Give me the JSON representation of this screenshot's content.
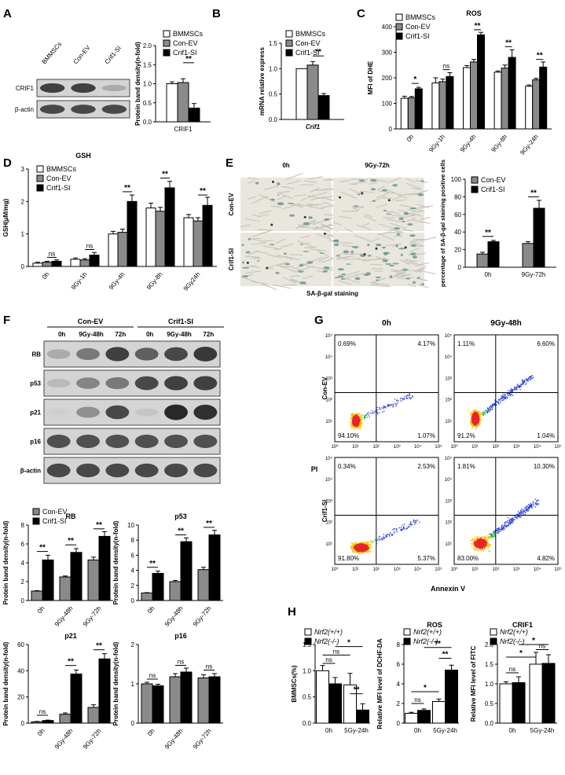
{
  "panels": {
    "A": {
      "letter": "A",
      "lanes": [
        "BMMSCs",
        "Con-EV",
        "Crif1-SI"
      ],
      "rows": [
        {
          "label": "CRIF1",
          "intensity": [
            0.85,
            0.85,
            0.35
          ]
        },
        {
          "label": "β-actin",
          "intensity": [
            0.8,
            0.8,
            0.8
          ]
        }
      ]
    },
    "B": {
      "letter": "B"
    },
    "C": {
      "letter": "C"
    },
    "D": {
      "letter": "D"
    },
    "E": {
      "letter": "E",
      "col_labels": [
        "0h",
        "9Gy-72h"
      ],
      "row_labels": [
        "Con-EV",
        "Crif1-SI"
      ],
      "caption": "SA-β-gal staining",
      "stain_density": [
        [
          0.12,
          0.22
        ],
        [
          0.25,
          0.55
        ]
      ]
    },
    "F": {
      "letter": "F",
      "groups": [
        "Con-EV",
        "Crif1-SI"
      ],
      "time_labels": [
        "0h",
        "9Gy-48h",
        "72h",
        "0h",
        "9Gy-48h",
        "72h"
      ],
      "rows": [
        {
          "label": "RB",
          "intensity": [
            0.35,
            0.6,
            0.85,
            0.7,
            0.8,
            0.9
          ]
        },
        {
          "label": "p53",
          "intensity": [
            0.25,
            0.55,
            0.6,
            0.8,
            0.85,
            0.85
          ]
        },
        {
          "label": "p21",
          "intensity": [
            0.05,
            0.5,
            0.8,
            0.15,
            1.0,
            0.95
          ]
        },
        {
          "label": "p16",
          "intensity": [
            0.75,
            0.75,
            0.75,
            0.75,
            0.75,
            0.75
          ]
        },
        {
          "label": "β-actin",
          "intensity": [
            0.8,
            0.8,
            0.8,
            0.8,
            0.8,
            0.8
          ]
        }
      ]
    },
    "G": {
      "letter": "G",
      "col_labels": [
        "0h",
        "9Gy-48h"
      ],
      "row_labels": [
        "Con-EV",
        "Crif1-SI"
      ],
      "xlabel": "Annexin V",
      "ylabel": "PI",
      "tick_labels": [
        "10⁰",
        "10¹",
        "10²",
        "10³",
        "10⁴",
        "10⁵"
      ],
      "plots": [
        {
          "ul": "0.69%",
          "ur": "4.17%",
          "ll": "94.10%",
          "lr": "1.07%"
        },
        {
          "ul": "1.11%",
          "ur": "6.60%",
          "ll": "91.2%",
          "lr": "1.04%"
        },
        {
          "ul": "0.34%",
          "ur": "2.53%",
          "ll": "91.80%",
          "lr": "5.37%"
        },
        {
          "ul": "1.81%",
          "ur": "10.30%",
          "ll": "83.00%",
          "lr": "4.82%"
        }
      ]
    },
    "H": {
      "letter": "H"
    }
  },
  "chart_data": [
    {
      "id": "A_bar",
      "type": "bar",
      "categories": [
        "CRIF1"
      ],
      "series": [
        {
          "name": "BMMSCs",
          "values": [
            1.0
          ],
          "err": [
            0.05
          ]
        },
        {
          "name": "Con-EV",
          "values": [
            1.03
          ],
          "err": [
            0.1
          ]
        },
        {
          "name": "Crif1-SI",
          "values": [
            0.36
          ],
          "err": [
            0.12
          ]
        }
      ],
      "ylabel": "Protein band density(n-fold)",
      "ylim": [
        0,
        2
      ],
      "yticks": [
        0,
        0.5,
        1.0,
        1.5,
        2.0
      ],
      "sig": [
        {
          "from": 1,
          "to": 2,
          "y": 1.55,
          "label": "**"
        }
      ]
    },
    {
      "id": "B_bar",
      "type": "bar",
      "categories": [
        "Crif1"
      ],
      "series": [
        {
          "name": "BMMSCs",
          "values": [
            1.0
          ],
          "err": [
            0.0
          ]
        },
        {
          "name": "Con-EV",
          "values": [
            1.07
          ],
          "err": [
            0.07
          ]
        },
        {
          "name": "Crif1-SI",
          "values": [
            0.47
          ],
          "err": [
            0.04
          ]
        }
      ],
      "ylabel": "mRNA relative express",
      "ylim": [
        0,
        1.5
      ],
      "yticks": [
        0.0,
        0.5,
        1.0,
        1.5
      ],
      "sig": [
        {
          "from": 1,
          "to": 2,
          "y": 1.25,
          "label": "**"
        }
      ]
    },
    {
      "id": "C_bar",
      "type": "bar",
      "title": "ROS",
      "categories": [
        "0h",
        "9Gy-1h",
        "9Gy-4h",
        "9Gy-8h",
        "9Gy-24h"
      ],
      "series": [
        {
          "name": "BMMSCs",
          "values": [
            120,
            180,
            240,
            222,
            167
          ],
          "err": [
            8,
            20,
            8,
            5,
            5
          ]
        },
        {
          "name": "Con-EV",
          "values": [
            122,
            185,
            262,
            238,
            192
          ],
          "err": [
            5,
            10,
            10,
            12,
            6
          ]
        },
        {
          "name": "Crif1-SI",
          "values": [
            157,
            205,
            368,
            280,
            242
          ],
          "err": [
            6,
            15,
            10,
            30,
            20
          ]
        }
      ],
      "ylabel": "MFI of DHE",
      "ylim": [
        0,
        400
      ],
      "yticks": [
        0,
        100,
        200,
        300,
        400
      ],
      "sig": [
        {
          "cat": 0,
          "from": 1,
          "to": 2,
          "y": 178,
          "label": "*"
        },
        {
          "cat": 1,
          "from": 1,
          "to": 2,
          "y": 232,
          "label": "ns"
        },
        {
          "cat": 2,
          "from": 1,
          "to": 2,
          "y": 388,
          "label": "**"
        },
        {
          "cat": 3,
          "from": 1,
          "to": 2,
          "y": 322,
          "label": "**"
        },
        {
          "cat": 4,
          "from": 1,
          "to": 2,
          "y": 272,
          "label": "**"
        }
      ]
    },
    {
      "id": "D_bar",
      "type": "bar",
      "title": "GSH",
      "categories": [
        "0h",
        "9Gy-1h",
        "9Gy-4h",
        "9Gy-8h",
        "9Gy24h"
      ],
      "series": [
        {
          "name": "BMMSCs",
          "values": [
            0.1,
            0.22,
            1.0,
            1.8,
            1.5
          ],
          "err": [
            0.03,
            0.04,
            0.08,
            0.15,
            0.1
          ]
        },
        {
          "name": "Con-EV",
          "values": [
            0.13,
            0.2,
            1.05,
            1.7,
            1.4
          ],
          "err": [
            0.03,
            0.04,
            0.1,
            0.12,
            0.1
          ]
        },
        {
          "name": "Crif1-SI",
          "values": [
            0.16,
            0.35,
            2.0,
            2.42,
            1.88
          ],
          "err": [
            0.04,
            0.08,
            0.2,
            0.2,
            0.25
          ]
        }
      ],
      "ylabel": "GSH(μM/mg)",
      "ylim": [
        0,
        3
      ],
      "yticks": [
        0,
        1,
        2,
        3
      ],
      "sig": [
        {
          "cat": 0,
          "from": 1,
          "to": 2,
          "y": 0.28,
          "label": "ns"
        },
        {
          "cat": 1,
          "from": 1,
          "to": 2,
          "y": 0.52,
          "label": "ns"
        },
        {
          "cat": 2,
          "from": 1,
          "to": 2,
          "y": 2.3,
          "label": "**"
        },
        {
          "cat": 3,
          "from": 1,
          "to": 2,
          "y": 2.72,
          "label": "**"
        },
        {
          "cat": 4,
          "from": 1,
          "to": 2,
          "y": 2.2,
          "label": "**"
        }
      ]
    },
    {
      "id": "E_bar",
      "type": "bar",
      "categories": [
        "0h",
        "9Gy-72h"
      ],
      "series": [
        {
          "name": "Con-EV",
          "values": [
            15,
            27
          ],
          "err": [
            2,
            2
          ]
        },
        {
          "name": "Crif1-SI",
          "values": [
            29,
            67
          ],
          "err": [
            1.5,
            9
          ]
        }
      ],
      "ylabel": "percentage of SA-β-gal staining positive cells",
      "ylim": [
        0,
        100
      ],
      "yticks": [
        0,
        20,
        40,
        60,
        80,
        100
      ],
      "sig": [
        {
          "cat": 0,
          "from": 0,
          "to": 1,
          "y": 35,
          "label": "**"
        },
        {
          "cat": 1,
          "from": 0,
          "to": 1,
          "y": 80,
          "label": "**"
        }
      ]
    },
    {
      "id": "F_RB",
      "type": "bar",
      "title": "RB",
      "categories": [
        "0h",
        "9Gy-48h",
        "9Gy-72h"
      ],
      "series": [
        {
          "name": "Con-EV",
          "values": [
            1.0,
            2.5,
            4.3
          ],
          "err": [
            0.05,
            0.1,
            0.3
          ]
        },
        {
          "name": "Crif1-SI",
          "values": [
            4.3,
            5.1,
            6.8
          ],
          "err": [
            0.5,
            0.4,
            0.5
          ]
        }
      ],
      "ylabel": "Protein band density(n-fold)",
      "ylim": [
        0,
        8
      ],
      "yticks": [
        0,
        2,
        4,
        6,
        8
      ],
      "sig": [
        {
          "cat": 0,
          "from": 0,
          "to": 1,
          "y": 5.2,
          "label": "**"
        },
        {
          "cat": 1,
          "from": 0,
          "to": 1,
          "y": 5.9,
          "label": "**"
        },
        {
          "cat": 2,
          "from": 0,
          "to": 1,
          "y": 7.6,
          "label": "**"
        }
      ]
    },
    {
      "id": "F_p53",
      "type": "bar",
      "title": "p53",
      "categories": [
        "0h",
        "9Gy-48h",
        "9Gy-72h"
      ],
      "series": [
        {
          "name": "Con-EV",
          "values": [
            1.0,
            2.5,
            4.1
          ],
          "err": [
            0.05,
            0.15,
            0.3
          ]
        },
        {
          "name": "Crif1-SI",
          "values": [
            3.6,
            7.8,
            8.7
          ],
          "err": [
            0.3,
            0.5,
            0.6
          ]
        }
      ],
      "ylabel": "Protein band density(n-fold)",
      "ylim": [
        0,
        10
      ],
      "yticks": [
        0,
        2,
        4,
        6,
        8,
        10
      ],
      "sig": [
        {
          "cat": 0,
          "from": 0,
          "to": 1,
          "y": 4.4,
          "label": "**"
        },
        {
          "cat": 1,
          "from": 0,
          "to": 1,
          "y": 8.7,
          "label": "**"
        },
        {
          "cat": 2,
          "from": 0,
          "to": 1,
          "y": 9.7,
          "label": "**"
        }
      ]
    },
    {
      "id": "F_p21",
      "type": "bar",
      "title": "p21",
      "categories": [
        "0h",
        "9Gy-48h",
        "9Gy-72h"
      ],
      "series": [
        {
          "name": "Con-EV",
          "values": [
            1.0,
            6.8,
            12.0
          ],
          "err": [
            0.3,
            1.0,
            2.0
          ]
        },
        {
          "name": "Crif1-SI",
          "values": [
            2.0,
            37.5,
            49.0
          ],
          "err": [
            0.3,
            3.0,
            4.0
          ]
        }
      ],
      "ylabel": "Protein band density(n-fold)",
      "ylim": [
        0,
        60
      ],
      "yticks": [
        0,
        20,
        40,
        60
      ],
      "sig": [
        {
          "cat": 0,
          "from": 0,
          "to": 1,
          "y": 6,
          "label": "ns"
        },
        {
          "cat": 1,
          "from": 0,
          "to": 1,
          "y": 44,
          "label": "**"
        },
        {
          "cat": 2,
          "from": 0,
          "to": 1,
          "y": 56,
          "label": "**"
        }
      ]
    },
    {
      "id": "F_p16",
      "type": "bar",
      "title": "p16",
      "categories": [
        "0h",
        "9Gy-48h",
        "9Gy-72h"
      ],
      "series": [
        {
          "name": "Con-EV",
          "values": [
            1.0,
            1.18,
            1.15
          ],
          "err": [
            0.04,
            0.08,
            0.08
          ]
        },
        {
          "name": "Crif1-SI",
          "values": [
            0.95,
            1.3,
            1.18
          ],
          "err": [
            0.04,
            0.1,
            0.08
          ]
        }
      ],
      "ylabel": "Protein band density(n-fold)",
      "ylim": [
        0,
        2
      ],
      "yticks": [
        0,
        1,
        2
      ],
      "sig": [
        {
          "cat": 0,
          "from": 0,
          "to": 1,
          "y": 1.12,
          "label": "ns"
        },
        {
          "cat": 1,
          "from": 0,
          "to": 1,
          "y": 1.47,
          "label": "ns"
        },
        {
          "cat": 2,
          "from": 0,
          "to": 1,
          "y": 1.35,
          "label": "ns"
        }
      ]
    },
    {
      "id": "H_bmmscs",
      "type": "bar",
      "categories": [
        "0h",
        "5Gy-24h"
      ],
      "series": [
        {
          "name": "Nrf2(+/+)",
          "values": [
            1.0,
            0.73
          ],
          "err": [
            0.1,
            0.22
          ]
        },
        {
          "name": "Nrf2(-/-)",
          "values": [
            0.75,
            0.25
          ],
          "err": [
            0.12,
            0.12
          ]
        }
      ],
      "ylabel": "BMMSCs(%)",
      "ylim": [
        0,
        1.5
      ],
      "yticks": [
        0.0,
        0.5,
        1.0,
        1.5
      ],
      "sig": [
        {
          "cat": 0,
          "from": 0,
          "to": 1,
          "y": 1.14,
          "label": "ns"
        },
        {
          "cat": 1,
          "from": 0,
          "to": 1,
          "y": 0.56,
          "label": "**"
        },
        {
          "bars": [
            [
              0,
              0
            ],
            [
              1,
              0
            ]
          ],
          "y": 1.3,
          "label": "ns"
        },
        {
          "bars": [
            [
              0,
              1
            ],
            [
              1,
              1
            ]
          ],
          "y": 1.46,
          "label": "*"
        }
      ]
    },
    {
      "id": "H_ros",
      "type": "bar",
      "title": "ROS",
      "categories": [
        "0h",
        "5Gy-24h"
      ],
      "series": [
        {
          "name": "Nrf2(+/+)",
          "values": [
            1.0,
            2.2
          ],
          "err": [
            0.1,
            0.25
          ]
        },
        {
          "name": "Nrf2(-/-)",
          "values": [
            1.3,
            5.4
          ],
          "err": [
            0.15,
            0.5
          ]
        }
      ],
      "ylabel": "Relative MFI level of DCHF-DA",
      "ylim": [
        0,
        8
      ],
      "yticks": [
        0,
        2,
        4,
        6,
        8
      ],
      "sig": [
        {
          "cat": 0,
          "from": 0,
          "to": 1,
          "y": 2.0,
          "label": "ns"
        },
        {
          "cat": 1,
          "from": 0,
          "to": 1,
          "y": 6.6,
          "label": "**"
        },
        {
          "bars": [
            [
              0,
              0
            ],
            [
              1,
              0
            ]
          ],
          "y": 3.2,
          "label": "*"
        },
        {
          "bars": [
            [
              0,
              1
            ],
            [
              1,
              1
            ]
          ],
          "y": 7.7,
          "label": "**"
        }
      ]
    },
    {
      "id": "H_crif1",
      "type": "bar",
      "title": "CRIF1",
      "categories": [
        "0h",
        "5Gy-24h"
      ],
      "series": [
        {
          "name": "Nrf2(+/+)",
          "values": [
            1.0,
            1.5
          ],
          "err": [
            0.05,
            0.3
          ]
        },
        {
          "name": "Nrf2(-/-)",
          "values": [
            1.03,
            1.52
          ],
          "err": [
            0.15,
            0.22
          ]
        }
      ],
      "ylabel": "Relative MFI level of FITC",
      "ylim": [
        0,
        2
      ],
      "yticks": [
        0.0,
        0.5,
        1.0,
        1.5,
        2.0
      ],
      "sig": [
        {
          "cat": 0,
          "from": 0,
          "to": 1,
          "y": 1.28,
          "label": "ns"
        },
        {
          "cat": 1,
          "from": 0,
          "to": 1,
          "y": 1.87,
          "label": "ns"
        },
        {
          "bars": [
            [
              0,
              0
            ],
            [
              1,
              0
            ]
          ],
          "y": 1.68,
          "label": "*"
        },
        {
          "bars": [
            [
              0,
              1
            ],
            [
              1,
              1
            ]
          ],
          "y": 2.0,
          "label": "*"
        }
      ]
    }
  ],
  "colors": {
    "bar1": "#ffffff",
    "bar2": "#8a8a8a",
    "bar3": "#000000",
    "blot_bg": "#d4d4d4",
    "flow_red": "#e8262a",
    "flow_blue": "#2a3fd6"
  }
}
